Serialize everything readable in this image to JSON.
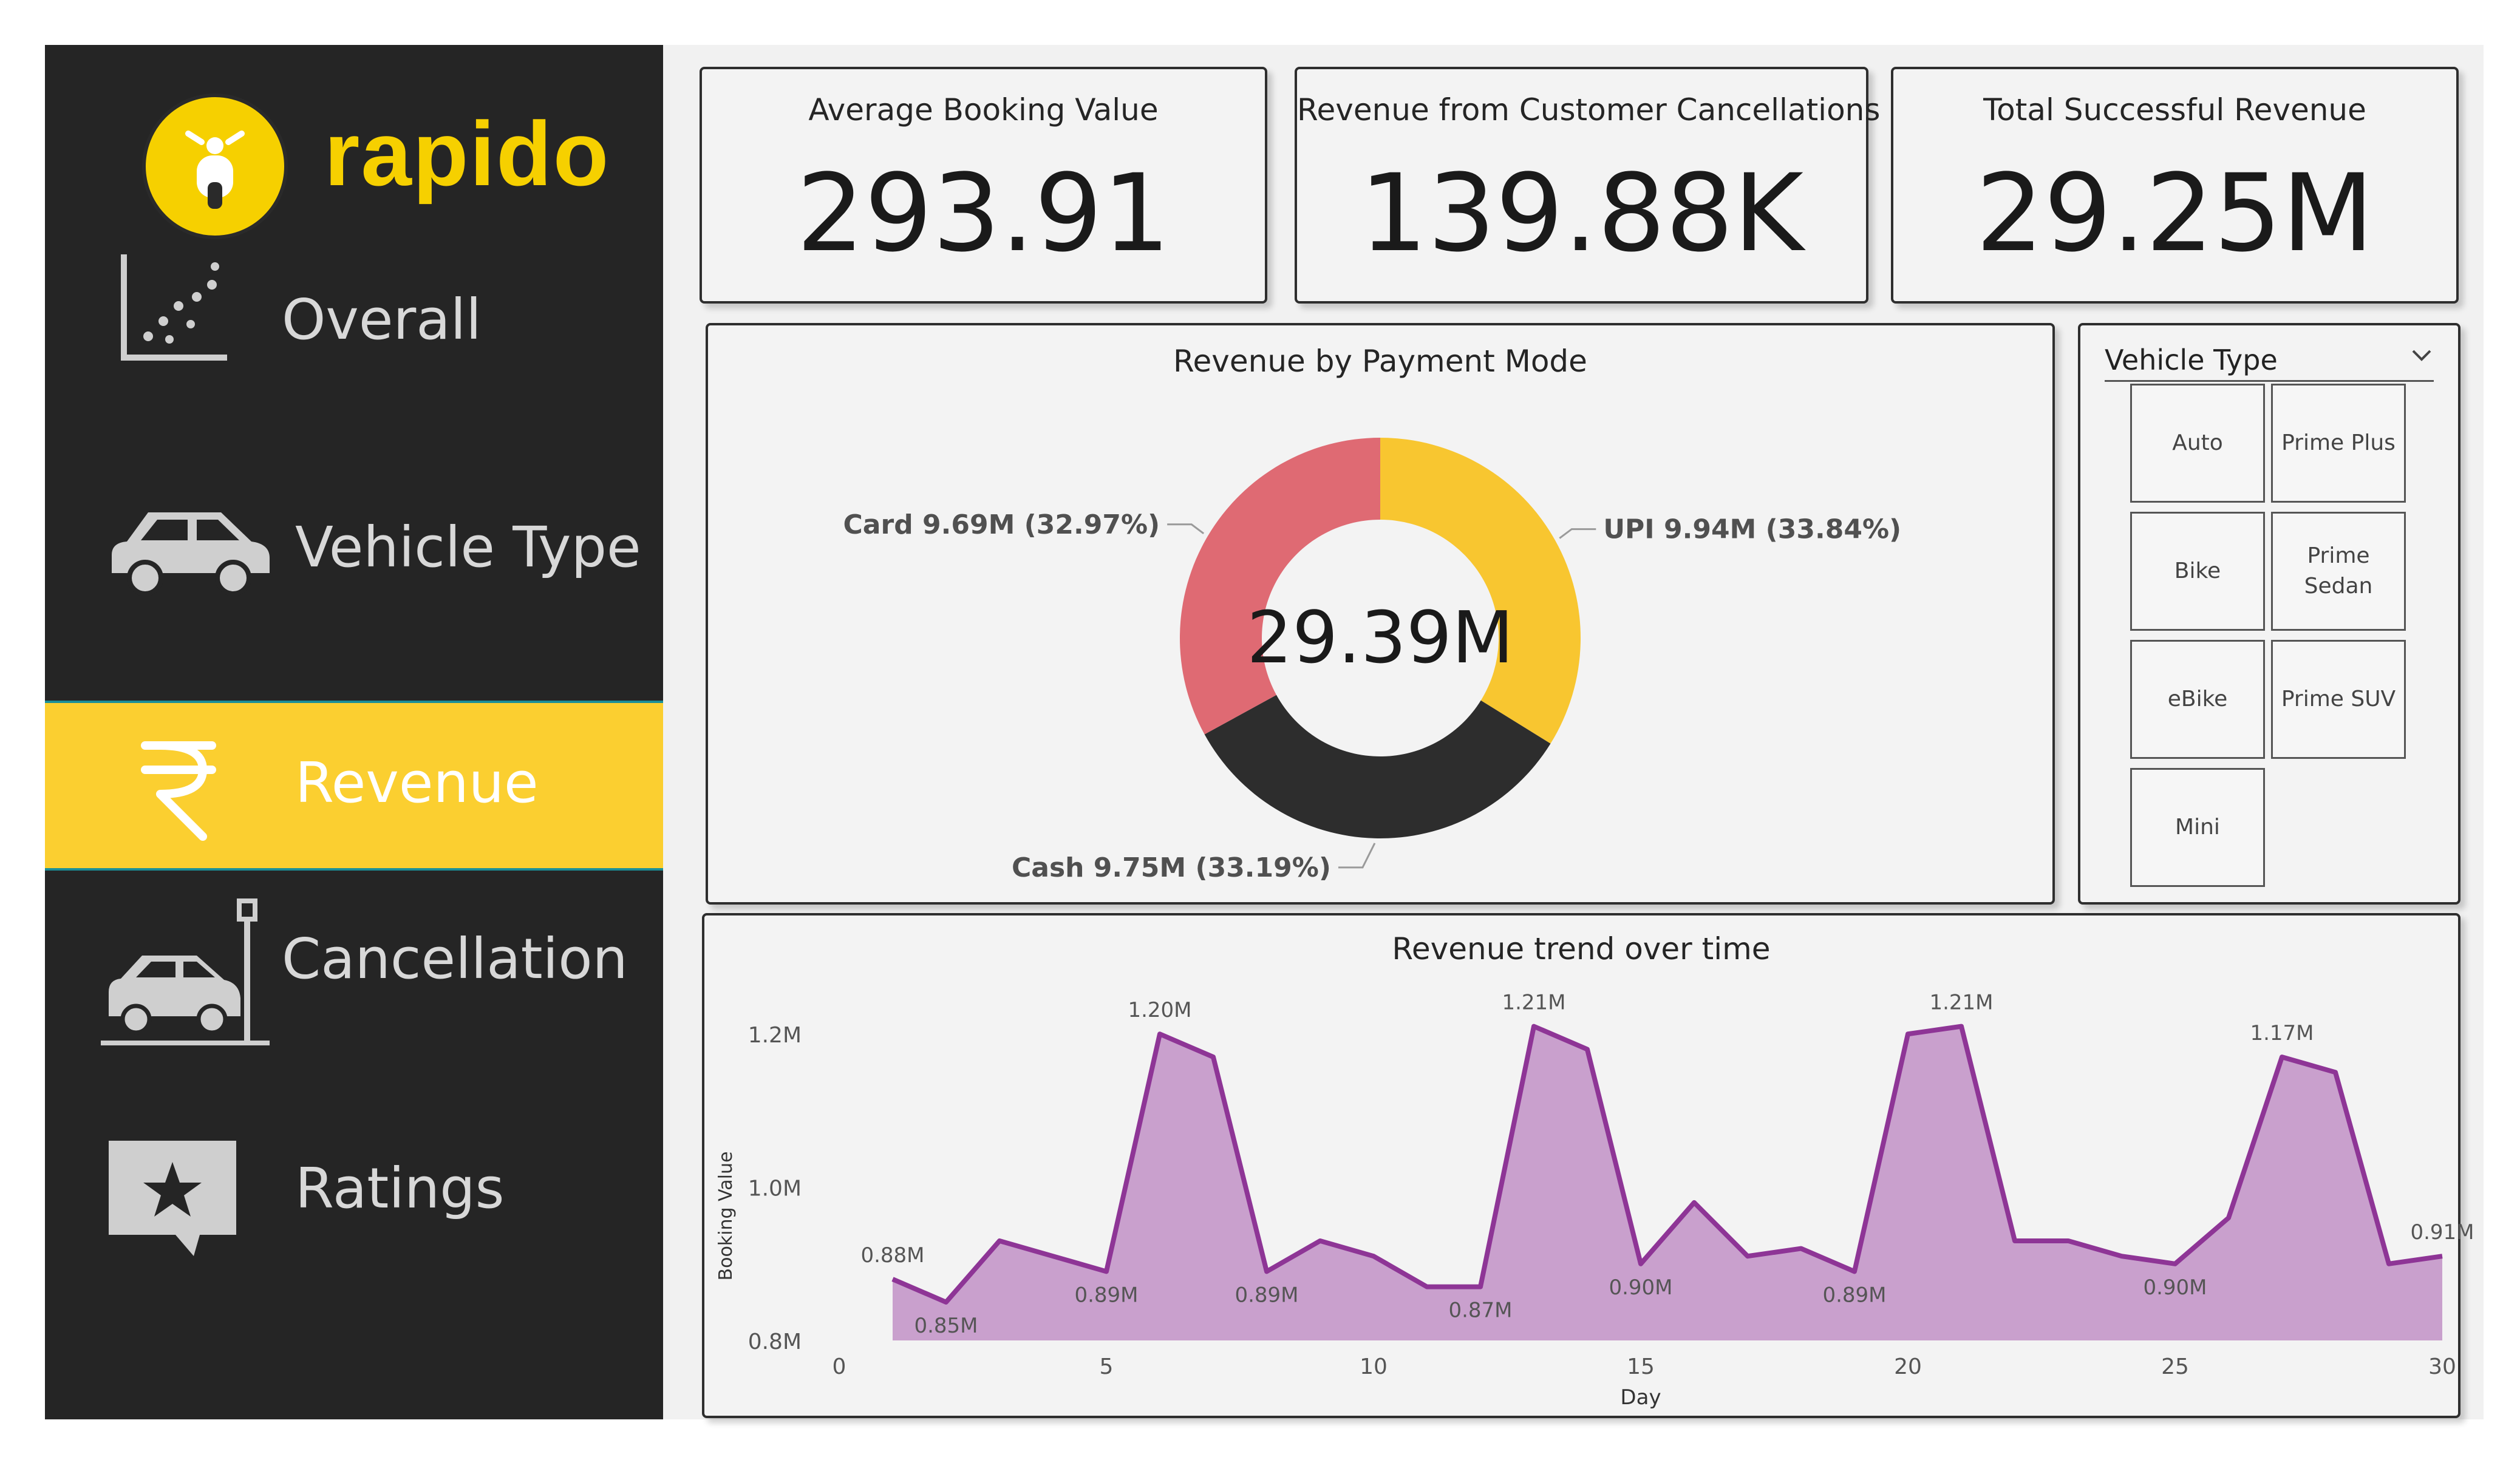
{
  "brand": {
    "name": "rapido",
    "accent": "#F6D000",
    "sidebar_bg": "#252525",
    "active_bg": "#FBCF30"
  },
  "nav": [
    {
      "label": "Overall",
      "icon": "scatter-chart-icon",
      "active": false
    },
    {
      "label": "Vehicle Type",
      "icon": "car-icon",
      "active": false
    },
    {
      "label": "Revenue",
      "icon": "rupee-icon",
      "active": true
    },
    {
      "label": "Cancellation",
      "icon": "car-crash-icon",
      "active": false
    },
    {
      "label": "Ratings",
      "icon": "star-message-icon",
      "active": false
    }
  ],
  "kpis": [
    {
      "title": "Average Booking Value",
      "value": "293.91"
    },
    {
      "title": "Revenue from Customer Cancellations",
      "value": "139.88K"
    },
    {
      "title": "Total Successful Revenue",
      "value": "29.25M"
    }
  ],
  "slicer": {
    "title": "Vehicle Type",
    "options": [
      "Auto",
      "Prime Plus",
      "Bike",
      "Prime Sedan",
      "eBike",
      "Prime SUV",
      "Mini"
    ]
  },
  "chart_data": [
    {
      "type": "pie",
      "title": "Revenue by Payment Mode",
      "center_label": "29.39M",
      "slices": [
        {
          "name": "UPI",
          "value": 9.94,
          "label": "UPI 9.94M (33.84%)",
          "color": "#F8C630"
        },
        {
          "name": "Cash",
          "value": 9.75,
          "label": "Cash 9.75M (33.19%)",
          "color": "#2D2D2D"
        },
        {
          "name": "Card",
          "value": 9.69,
          "label": "Card 9.69M (32.97%)",
          "color": "#DF6A73"
        }
      ],
      "donut": true
    },
    {
      "type": "area",
      "title": "Revenue trend over time",
      "xlabel": "Day",
      "ylabel": "Booking Value",
      "xlim": [
        0,
        30
      ],
      "ylim": [
        0.8,
        1.22
      ],
      "xticks": [
        "0",
        "5",
        "10",
        "15",
        "20",
        "25",
        "30"
      ],
      "yticks": [
        "0.8M",
        "1.0M",
        "1.2M"
      ],
      "color": "#8E3596",
      "x": [
        1,
        2,
        3,
        4,
        5,
        6,
        7,
        8,
        9,
        10,
        11,
        12,
        13,
        14,
        15,
        16,
        17,
        18,
        19,
        20,
        21,
        22,
        23,
        24,
        25,
        26,
        27,
        28,
        29,
        30
      ],
      "values": [
        0.88,
        0.85,
        0.93,
        0.91,
        0.89,
        1.2,
        1.17,
        0.89,
        0.93,
        0.91,
        0.87,
        0.87,
        1.21,
        1.18,
        0.9,
        0.98,
        0.91,
        0.92,
        0.89,
        1.2,
        1.21,
        0.93,
        0.93,
        0.91,
        0.9,
        0.96,
        1.17,
        1.15,
        0.9,
        0.91
      ],
      "point_labels": [
        {
          "x": 1,
          "text": "0.88M"
        },
        {
          "x": 2,
          "text": "0.85M"
        },
        {
          "x": 5,
          "text": "0.89M"
        },
        {
          "x": 6,
          "text": "1.20M"
        },
        {
          "x": 8,
          "text": "0.89M"
        },
        {
          "x": 12,
          "text": "0.87M"
        },
        {
          "x": 13,
          "text": "1.21M"
        },
        {
          "x": 15,
          "text": "0.90M"
        },
        {
          "x": 19,
          "text": "0.89M"
        },
        {
          "x": 21,
          "text": "1.21M"
        },
        {
          "x": 25,
          "text": "0.90M"
        },
        {
          "x": 27,
          "text": "1.17M"
        },
        {
          "x": 30,
          "text": "0.91M"
        }
      ]
    }
  ]
}
